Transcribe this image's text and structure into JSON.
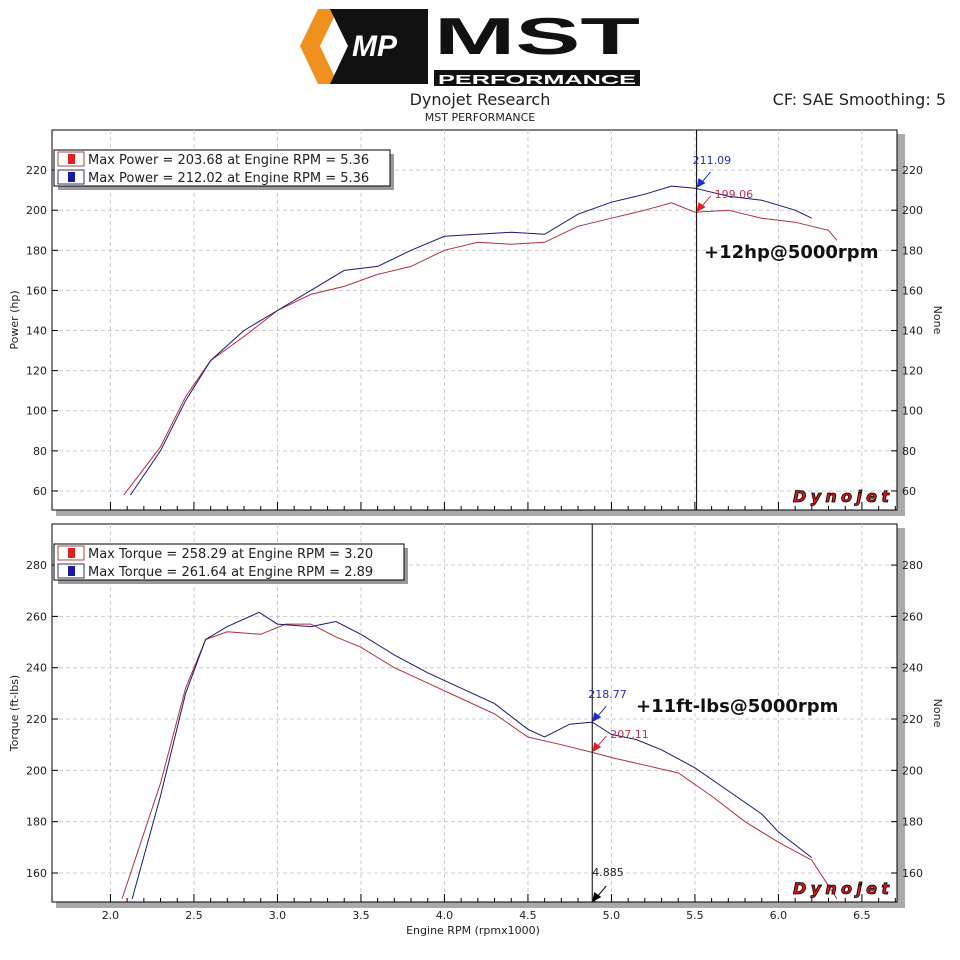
{
  "header": {
    "logo_text": "MST PERFORMANCE",
    "logo_mark": "MP",
    "title": "Dynojet Research",
    "subtitle": "MST PERFORMANCE",
    "cf": "CF: SAE Smoothing: 5"
  },
  "colors": {
    "run1": "#e02020",
    "run2": "#1a1aa0",
    "line1": "#b03040",
    "line2": "#1a1a70"
  },
  "chart_data": [
    {
      "type": "line",
      "title": "Power",
      "ylabel": "Power (hp)",
      "y2label": "None",
      "xlabel": "Engine RPM (rpmx1000)",
      "xlim": [
        1.65,
        6.71
      ],
      "ylim": [
        50.5,
        240
      ],
      "yticks": [
        60,
        80,
        100,
        120,
        140,
        160,
        180,
        200,
        220
      ],
      "legend": [
        "Max Power = 203.68 at Engine RPM = 5.36",
        "Max Power = 212.02 at Engine RPM = 5.36"
      ],
      "legend_position": "top-left",
      "cursor_x": 5.51,
      "cursor_labels": [
        {
          "text": "211.09",
          "y": 211.09,
          "series": 1
        },
        {
          "text": "199.06",
          "y": 199.06,
          "series": 0
        }
      ],
      "annotation": "+12hp@5000rpm",
      "series": [
        {
          "name": "Run 1",
          "x": [
            2.08,
            2.3,
            2.45,
            2.6,
            2.8,
            3.0,
            3.2,
            3.4,
            3.6,
            3.8,
            4.0,
            4.2,
            4.4,
            4.6,
            4.8,
            5.0,
            5.2,
            5.36,
            5.5,
            5.7,
            5.9,
            6.1,
            6.3,
            6.35
          ],
          "y": [
            58,
            82,
            107,
            125,
            137,
            150,
            158,
            162,
            168,
            172,
            180,
            184,
            183,
            184,
            192,
            196,
            200,
            203.7,
            199,
            200,
            196,
            194,
            190,
            185
          ]
        },
        {
          "name": "Run 2",
          "x": [
            2.12,
            2.3,
            2.45,
            2.6,
            2.8,
            3.0,
            3.2,
            3.4,
            3.6,
            3.8,
            4.0,
            4.2,
            4.4,
            4.6,
            4.8,
            5.0,
            5.2,
            5.36,
            5.5,
            5.7,
            5.9,
            6.1,
            6.2
          ],
          "y": [
            58,
            80,
            105,
            125,
            140,
            150,
            160,
            170,
            172,
            180,
            187,
            188,
            189,
            188,
            198,
            204,
            208,
            212,
            211,
            207,
            205,
            200,
            196
          ]
        }
      ]
    },
    {
      "type": "line",
      "title": "Torque",
      "ylabel": "Torque (ft-lbs)",
      "y2label": "None",
      "xlabel": "Engine RPM (rpmx1000)",
      "xlim": [
        1.65,
        6.71
      ],
      "ylim": [
        148.7,
        296
      ],
      "yticks": [
        160,
        180,
        200,
        220,
        240,
        260,
        280
      ],
      "xticks": [
        2.0,
        2.5,
        3.0,
        3.5,
        4.0,
        4.5,
        5.0,
        5.5,
        6.0,
        6.5
      ],
      "legend": [
        "Max Torque = 258.29 at Engine RPM = 3.20",
        "Max Torque = 261.64 at Engine RPM = 2.89"
      ],
      "legend_position": "top-left",
      "cursor_x": 4.885,
      "cursor_labels": [
        {
          "text": "218.77",
          "y": 218.77,
          "series": 1
        },
        {
          "text": "207.11",
          "y": 207.11,
          "series": 0
        }
      ],
      "cursor_x_label": "4.885",
      "annotation": "+11ft-lbs@5000rpm",
      "series": [
        {
          "name": "Run 1",
          "x": [
            2.07,
            2.3,
            2.45,
            2.57,
            2.7,
            2.9,
            3.05,
            3.2,
            3.35,
            3.5,
            3.7,
            3.9,
            4.1,
            4.3,
            4.5,
            4.7,
            4.885,
            5.0,
            5.2,
            5.4,
            5.6,
            5.8,
            6.0,
            6.2,
            6.3,
            6.35
          ],
          "y": [
            150,
            195,
            232,
            251,
            254,
            253,
            257,
            257,
            252,
            248,
            240,
            234,
            228,
            222,
            213,
            210,
            207,
            205,
            202,
            199,
            190,
            180,
            172,
            165,
            155,
            150
          ]
        },
        {
          "name": "Run 2",
          "x": [
            2.13,
            2.3,
            2.45,
            2.57,
            2.7,
            2.89,
            3.0,
            3.2,
            3.35,
            3.5,
            3.7,
            3.9,
            4.1,
            4.3,
            4.5,
            4.6,
            4.75,
            4.885,
            5.0,
            5.15,
            5.3,
            5.5,
            5.7,
            5.9,
            6.0,
            6.2
          ],
          "y": [
            150,
            190,
            230,
            251,
            256,
            261.6,
            257,
            256,
            258,
            253,
            245,
            238,
            232,
            226,
            216,
            213,
            218,
            218.8,
            214,
            212,
            208,
            201,
            192,
            183,
            176,
            166
          ]
        }
      ]
    }
  ],
  "watermark": "Dynojet"
}
